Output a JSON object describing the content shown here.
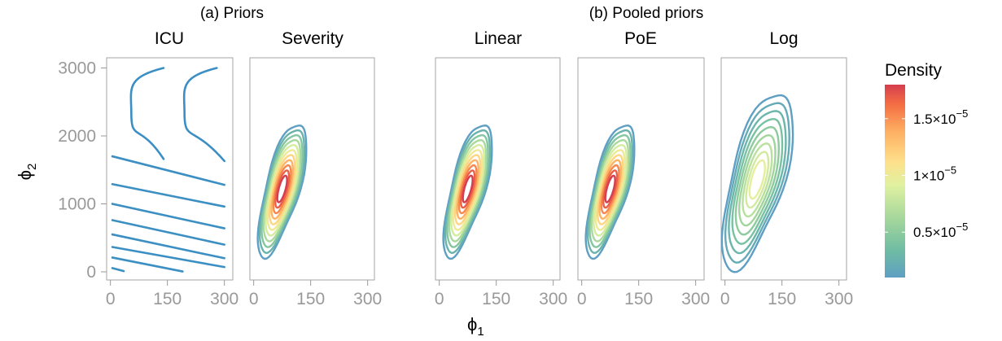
{
  "chart_data": {
    "type": "contour",
    "group_titles": [
      "(a) Priors",
      "(b) Pooled priors"
    ],
    "panels": [
      {
        "group": 0,
        "title": "ICU"
      },
      {
        "group": 0,
        "title": "Severity"
      },
      {
        "group": 1,
        "title": "Linear"
      },
      {
        "group": 1,
        "title": "PoE"
      },
      {
        "group": 1,
        "title": "Log"
      }
    ],
    "xlabel": "ϕ",
    "xlabel_sub": "1",
    "ylabel": "ϕ",
    "ylabel_sub": "2",
    "xlim": [
      -10,
      320
    ],
    "ylim": [
      -120,
      3150
    ],
    "x_ticks": [
      0,
      150,
      300
    ],
    "y_ticks": [
      0,
      1000,
      2000,
      3000
    ],
    "x_tick_labels": [
      "0",
      "150",
      "300"
    ],
    "y_tick_labels": [
      "0",
      "1000",
      "2000",
      "3000"
    ],
    "icu_lines": [
      {
        "x": [
          5,
          35
        ],
        "y": [
          55,
          10
        ]
      },
      {
        "x": [
          5,
          190
        ],
        "y": [
          210,
          5
        ]
      },
      {
        "x": [
          5,
          300
        ],
        "y": [
          365,
          70
        ]
      },
      {
        "x": [
          5,
          300
        ],
        "y": [
          550,
          200
        ]
      },
      {
        "x": [
          5,
          300
        ],
        "y": [
          760,
          400
        ]
      },
      {
        "x": [
          5,
          300
        ],
        "y": [
          1000,
          640
        ]
      },
      {
        "x": [
          5,
          300
        ],
        "y": [
          1290,
          960
        ]
      },
      {
        "x": [
          5,
          300
        ],
        "y": [
          1700,
          1280
        ]
      }
    ],
    "icu_arcs": [
      {
        "vertex_x": 55,
        "vertex_y": 2330,
        "top": [
          140,
          3000
        ],
        "bottom": [
          140,
          1660
        ]
      },
      {
        "vertex_x": 195,
        "vertex_y": 2330,
        "top": [
          280,
          3000
        ],
        "bottom": [
          300,
          1630
        ]
      }
    ],
    "density_modes": [
      {
        "panel": "Severity",
        "center": [
          75,
          1220
        ],
        "spread_x": 28,
        "spread_y": 420,
        "levels": 11,
        "outer_x": 46,
        "outer_y": 980
      },
      {
        "panel": "Linear",
        "center": [
          75,
          1220
        ],
        "spread_x": 28,
        "spread_y": 420,
        "levels": 11,
        "outer_x": 46,
        "outer_y": 980
      },
      {
        "panel": "PoE",
        "center": [
          75,
          1220
        ],
        "spread_x": 28,
        "spread_y": 420,
        "levels": 11,
        "outer_x": 46,
        "outer_y": 980
      },
      {
        "panel": "Log",
        "center": [
          85,
          1360
        ],
        "spread_x": 44,
        "spread_y": 520,
        "levels": 9,
        "outer_x": 72,
        "outer_y": 1300
      }
    ],
    "legend": {
      "title": "Density",
      "labels": [
        {
          "value": 1.5e-05,
          "base": "1.5×10",
          "exp": "−5"
        },
        {
          "value": 1e-05,
          "base": "1×10",
          "exp": "−5"
        },
        {
          "value": 5e-06,
          "base": "0.5×10",
          "exp": "−5"
        }
      ],
      "min": 1e-06,
      "max": 1.8e-05,
      "colors": [
        "#5e9fc3",
        "#6fbca3",
        "#a3d69c",
        "#e0f1a0",
        "#fee08b",
        "#fdae61",
        "#f46d43",
        "#d53e4f"
      ],
      "line_color_icu": "#3c8fc2"
    }
  }
}
